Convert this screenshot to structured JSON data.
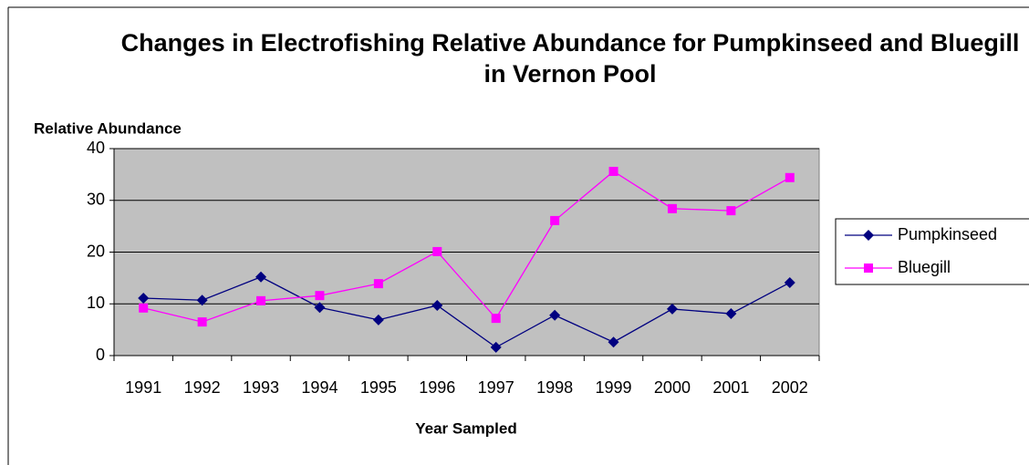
{
  "chart_data": {
    "type": "line",
    "title": "Changes in Electrofishing Relative Abundance for Pumpkinseed and Bluegill in Vernon Pool",
    "y_label": "Relative Abundance",
    "x_label": "Year Sampled",
    "categories": [
      "1991",
      "1992",
      "1993",
      "1994",
      "1995",
      "1996",
      "1997",
      "1998",
      "1999",
      "2000",
      "2001",
      "2002"
    ],
    "series": [
      {
        "name": "Pumpkinseed",
        "color": "#000080",
        "marker": "diamond",
        "values": [
          11.1,
          10.7,
          15.2,
          9.3,
          6.9,
          9.7,
          1.6,
          7.8,
          2.6,
          9.0,
          8.1,
          14.1
        ]
      },
      {
        "name": "Bluegill",
        "color": "#ff00ff",
        "marker": "square",
        "values": [
          9.2,
          6.5,
          10.6,
          11.6,
          13.9,
          20.1,
          7.2,
          26.1,
          35.6,
          28.4,
          28.0,
          34.4
        ]
      }
    ],
    "ylim": [
      0,
      40
    ],
    "yticks": [
      0,
      10,
      20,
      30,
      40
    ],
    "grid": true,
    "legend": "right"
  }
}
